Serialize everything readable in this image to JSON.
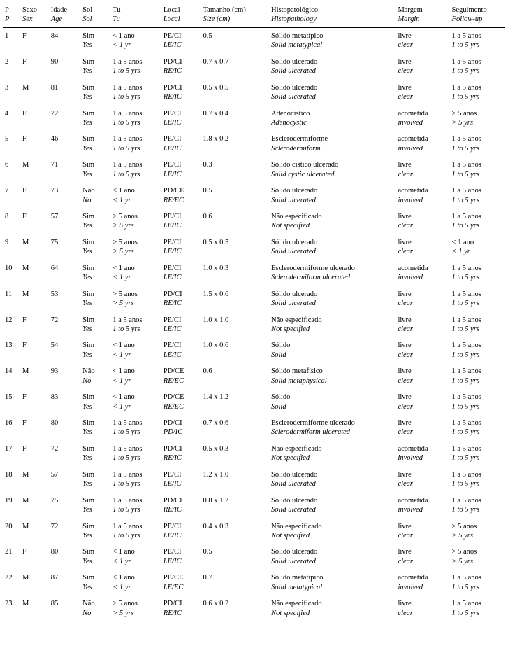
{
  "columns": [
    {
      "pt": "P",
      "en": "P"
    },
    {
      "pt": "Sexo",
      "en": "Sex"
    },
    {
      "pt": "Idade",
      "en": "Age"
    },
    {
      "pt": "Sol",
      "en": "Sol"
    },
    {
      "pt": "Tu",
      "en": "Tu"
    },
    {
      "pt": "Local",
      "en": "Local"
    },
    {
      "pt": "Tamanho (cm)",
      "en": "Size (cm)"
    },
    {
      "pt": "Histopatológico",
      "en": "Histopathology"
    },
    {
      "pt": "Margem",
      "en": "Margin"
    },
    {
      "pt": "Seguimento",
      "en": "Follow-up"
    }
  ],
  "rows": [
    {
      "p": "1",
      "sex": "F",
      "age": "84",
      "sol_pt": "Sim",
      "sol_en": "Yes",
      "tu_pt": "< 1 ano",
      "tu_en": "< 1 yr",
      "local_pt": "PE/CI",
      "local_en": "LE/IC",
      "size": "0.5",
      "histo_pt": "Sólido metatípico",
      "histo_en": "Solid metatypical",
      "margin_pt": "livre",
      "margin_en": "clear",
      "follow_pt": "1 a 5 anos",
      "follow_en": "1 to 5 yrs"
    },
    {
      "p": "2",
      "sex": "F",
      "age": "90",
      "sol_pt": "Sim",
      "sol_en": "Yes",
      "tu_pt": "1 a 5 anos",
      "tu_en": "1 to 5 yrs",
      "local_pt": "PD/CI",
      "local_en": "RE/IC",
      "size": "0.7 x 0.7",
      "histo_pt": "Sólido ulcerado",
      "histo_en": "Solid ulcerated",
      "margin_pt": "livre",
      "margin_en": "clear",
      "follow_pt": "1 a 5 anos",
      "follow_en": "1 to 5 yrs"
    },
    {
      "p": "3",
      "sex": "M",
      "age": "81",
      "sol_pt": "Sim",
      "sol_en": "Yes",
      "tu_pt": "1 a 5 anos",
      "tu_en": "1 to 5 yrs",
      "local_pt": "PD/CI",
      "local_en": "RE/IC",
      "size": "0.5 x 0.5",
      "histo_pt": "Sólido ulcerado",
      "histo_en": "Solid ulcerated",
      "margin_pt": "livre",
      "margin_en": "clear",
      "follow_pt": "1 a 5 anos",
      "follow_en": "1 to 5 yrs"
    },
    {
      "p": "4",
      "sex": "F",
      "age": "72",
      "sol_pt": "Sim",
      "sol_en": "Yes",
      "tu_pt": "1 a 5 anos",
      "tu_en": "1 to 5 yrs",
      "local_pt": "PE/CI",
      "local_en": "LE/IC",
      "size": "0.7 x 0.4",
      "histo_pt": "Adenocístico",
      "histo_en": "Adenocystic",
      "margin_pt": "acometida",
      "margin_en": "involved",
      "follow_pt": "> 5 anos",
      "follow_en": "> 5 yrs"
    },
    {
      "p": "5",
      "sex": "F",
      "age": "46",
      "sol_pt": "Sim",
      "sol_en": "Yes",
      "tu_pt": "1 a 5 anos",
      "tu_en": "1 to 5 yrs",
      "local_pt": "PE/CI",
      "local_en": "LE/IC",
      "size": "1.8 x 0.2",
      "histo_pt": "Esclerodermiforme",
      "histo_en": "Sclerodermiform",
      "margin_pt": "acometida",
      "margin_en": "involved",
      "follow_pt": "1 a 5 anos",
      "follow_en": "1 to 5 yrs"
    },
    {
      "p": "6",
      "sex": "M",
      "age": "71",
      "sol_pt": "Sim",
      "sol_en": "Yes",
      "tu_pt": "1 a 5 anos",
      "tu_en": "1 to 5 yrs",
      "local_pt": "PE/CI",
      "local_en": "LE/IC",
      "size": "0.3",
      "histo_pt": "Sólido cístico ulcerado",
      "histo_en": "Solid cystic ulcerated",
      "margin_pt": "livre",
      "margin_en": "clear",
      "follow_pt": "1 a 5 anos",
      "follow_en": "1 to 5 yrs"
    },
    {
      "p": "7",
      "sex": "F",
      "age": "73",
      "sol_pt": "Não",
      "sol_en": "No",
      "tu_pt": "< 1 ano",
      "tu_en": "< 1 yr",
      "local_pt": "PD/CE",
      "local_en": "RE/EC",
      "size": "0.5",
      "histo_pt": "Sólido ulcerado",
      "histo_en": "Solid ulcerated",
      "margin_pt": "acometida",
      "margin_en": "involved",
      "follow_pt": "1 a 5 anos",
      "follow_en": "1 to 5 yrs"
    },
    {
      "p": "8",
      "sex": "F",
      "age": "57",
      "sol_pt": "Sim",
      "sol_en": "Yes",
      "tu_pt": "> 5 anos",
      "tu_en": "> 5 yrs",
      "local_pt": "PE/CI",
      "local_en": "LE/IC",
      "size": "0.6",
      "histo_pt": "Não especificado",
      "histo_en": "Not specified",
      "margin_pt": "livre",
      "margin_en": "clear",
      "follow_pt": "1 a 5 anos",
      "follow_en": "1 to 5 yrs"
    },
    {
      "p": "9",
      "sex": "M",
      "age": "75",
      "sol_pt": "Sim",
      "sol_en": "Yes",
      "tu_pt": "> 5 anos",
      "tu_en": "> 5 yrs",
      "local_pt": "PE/CI",
      "local_en": "LE/IC",
      "size": "0.5 x 0.5",
      "histo_pt": "Sólido ulcerado",
      "histo_en": "Solid ulcerated",
      "margin_pt": "livre",
      "margin_en": "clear",
      "follow_pt": "< 1 ano",
      "follow_en": "< 1 yr"
    },
    {
      "p": "10",
      "sex": "M",
      "age": "64",
      "sol_pt": "Sim",
      "sol_en": "Yes",
      "tu_pt": "< 1 ano",
      "tu_en": "< 1 yr",
      "local_pt": "PE/CI",
      "local_en": "LE/IC",
      "size": "1.0 x 0.3",
      "histo_pt": "Esclerodermiforme ulcerado",
      "histo_en": "Sclerodermiform ulcerated",
      "margin_pt": "acometida",
      "margin_en": "involved",
      "follow_pt": "1 a 5 anos",
      "follow_en": "1 to 5 yrs"
    },
    {
      "p": "11",
      "sex": "M",
      "age": "53",
      "sol_pt": "Sim",
      "sol_en": "Yes",
      "tu_pt": "> 5 anos",
      "tu_en": "> 5 yrs",
      "local_pt": "PD/CI",
      "local_en": "RE/IC",
      "size": "1.5 x 0.6",
      "histo_pt": "Sólido ulcerado",
      "histo_en": "Solid ulcerated",
      "margin_pt": "livre",
      "margin_en": "clear",
      "follow_pt": "1 a 5 anos",
      "follow_en": "1 to 5 yrs"
    },
    {
      "p": "12",
      "sex": "F",
      "age": "72",
      "sol_pt": "Sim",
      "sol_en": "Yes",
      "tu_pt": "1 a 5 anos",
      "tu_en": "1 to 5 yrs",
      "local_pt": "PE/CI",
      "local_en": "LE/IC",
      "size": "1.0 x 1.0",
      "histo_pt": "Não especificado",
      "histo_en": "Not specified",
      "margin_pt": "livre",
      "margin_en": "clear",
      "follow_pt": "1 a 5 anos",
      "follow_en": "1 to 5 yrs"
    },
    {
      "p": "13",
      "sex": "F",
      "age": "54",
      "sol_pt": "Sim",
      "sol_en": "Yes",
      "tu_pt": "< 1 ano",
      "tu_en": "< 1 yr",
      "local_pt": "PE/CI",
      "local_en": "LE/IC",
      "size": "1.0 x 0.6",
      "histo_pt": "Sólido",
      "histo_en": "Solid",
      "margin_pt": "livre",
      "margin_en": "clear",
      "follow_pt": "1 a 5 anos",
      "follow_en": "1 to 5 yrs"
    },
    {
      "p": "14",
      "sex": "M",
      "age": "93",
      "sol_pt": "Não",
      "sol_en": "No",
      "tu_pt": "< 1 ano",
      "tu_en": "< 1 yr",
      "local_pt": "PD/CE",
      "local_en": "RE/EC",
      "size": "0.6",
      "histo_pt": "Sólido metafísico",
      "histo_en": "Solid metaphysical",
      "margin_pt": "livre",
      "margin_en": "clear",
      "follow_pt": "1 a 5 anos",
      "follow_en": "1 to 5 yrs"
    },
    {
      "p": "15",
      "sex": "F",
      "age": "83",
      "sol_pt": "Sim",
      "sol_en": "Yes",
      "tu_pt": "< 1 ano",
      "tu_en": "< 1 yr",
      "local_pt": "PD/CE",
      "local_en": "RE/EC",
      "size": "1.4 x 1.2",
      "histo_pt": "Sólido",
      "histo_en": "Solid",
      "margin_pt": "livre",
      "margin_en": "clear",
      "follow_pt": "1 a 5 anos",
      "follow_en": "1 to 5 yrs"
    },
    {
      "p": "16",
      "sex": "F",
      "age": "80",
      "sol_pt": "Sim",
      "sol_en": "Yes",
      "tu_pt": "1 a 5 anos",
      "tu_en": "1 to 5 yrs",
      "local_pt": "PD/CI",
      "local_en": "PD/IC",
      "size": "0.7 x 0.6",
      "histo_pt": "Esclerodermiforme ulcerado",
      "histo_en": "Sclerodermiform ulcerated",
      "margin_pt": "livre",
      "margin_en": "clear",
      "follow_pt": "1 a 5 anos",
      "follow_en": "1 to 5 yrs"
    },
    {
      "p": "17",
      "sex": "F",
      "age": "72",
      "sol_pt": "Sim",
      "sol_en": "Yes",
      "tu_pt": "1 a 5 anos",
      "tu_en": "1 to 5 yrs",
      "local_pt": "PD/CI",
      "local_en": "RE/IC",
      "size": "0.5 x 0.3",
      "histo_pt": "Não especificado",
      "histo_en": "Not specified",
      "margin_pt": "acometida",
      "margin_en": "involved",
      "follow_pt": "1 a 5 anos",
      "follow_en": "1 to 5 yrs"
    },
    {
      "p": "18",
      "sex": "M",
      "age": "57",
      "sol_pt": "Sim",
      "sol_en": "Yes",
      "tu_pt": "1 a 5 anos",
      "tu_en": "1 to 5 yrs",
      "local_pt": "PE/CI",
      "local_en": "LE/IC",
      "size": "1.2 x 1.0",
      "histo_pt": "Sólido ulcerado",
      "histo_en": "Solid ulcerated",
      "margin_pt": "livre",
      "margin_en": "clear",
      "follow_pt": "1 a 5 anos",
      "follow_en": "1 to 5 yrs"
    },
    {
      "p": "19",
      "sex": "M",
      "age": "75",
      "sol_pt": "Sim",
      "sol_en": "Yes",
      "tu_pt": "1 a 5 anos",
      "tu_en": "1 to 5 yrs",
      "local_pt": "PD/CI",
      "local_en": "RE/IC",
      "size": "0.8 x 1.2",
      "histo_pt": "Sólido ulcerado",
      "histo_en": "Solid ulcerated",
      "margin_pt": "acometida",
      "margin_en": "involved",
      "follow_pt": "1 a 5 anos",
      "follow_en": "1 to 5 yrs"
    },
    {
      "p": "20",
      "sex": "M",
      "age": "72",
      "sol_pt": "Sim",
      "sol_en": "Yes",
      "tu_pt": "1 a 5 anos",
      "tu_en": "1 to 5 yrs",
      "local_pt": "PE/CI",
      "local_en": "LE/IC",
      "size": "0.4 x 0.3",
      "histo_pt": "Não especificado",
      "histo_en": "Not specified",
      "margin_pt": "livre",
      "margin_en": "clear",
      "follow_pt": "> 5 anos",
      "follow_en": "> 5 yrs"
    },
    {
      "p": "21",
      "sex": "F",
      "age": "80",
      "sol_pt": "Sim",
      "sol_en": "Yes",
      "tu_pt": "< 1 ano",
      "tu_en": "< 1 yr",
      "local_pt": "PE/CI",
      "local_en": "LE/IC",
      "size": "0.5",
      "histo_pt": "Sólido ulcerado",
      "histo_en": "Solid ulcerated",
      "margin_pt": "livre",
      "margin_en": "clear",
      "follow_pt": "> 5 anos",
      "follow_en": "> 5 yrs"
    },
    {
      "p": "22",
      "sex": "M",
      "age": "87",
      "sol_pt": "Sim",
      "sol_en": "Yes",
      "tu_pt": "< 1 ano",
      "tu_en": "< 1 yr",
      "local_pt": "PE/CE",
      "local_en": "LE/EC",
      "size": "0.7",
      "histo_pt": "Sólido metatípico",
      "histo_en": "Solid metatypical",
      "margin_pt": "acometida",
      "margin_en": "involved",
      "follow_pt": "1 a 5 anos",
      "follow_en": "1 to 5 yrs"
    },
    {
      "p": "23",
      "sex": "M",
      "age": "85",
      "sol_pt": "Não",
      "sol_en": "No",
      "tu_pt": "> 5 anos",
      "tu_en": "> 5 yrs",
      "local_pt": "PD/CI",
      "local_en": "RE/IC",
      "size": "0.6 x 0.2",
      "histo_pt": "Não especificado",
      "histo_en": "Not specified",
      "margin_pt": "livre",
      "margin_en": "clear",
      "follow_pt": "1 a 5 anos",
      "follow_en": "1 to 5 yrs"
    }
  ]
}
